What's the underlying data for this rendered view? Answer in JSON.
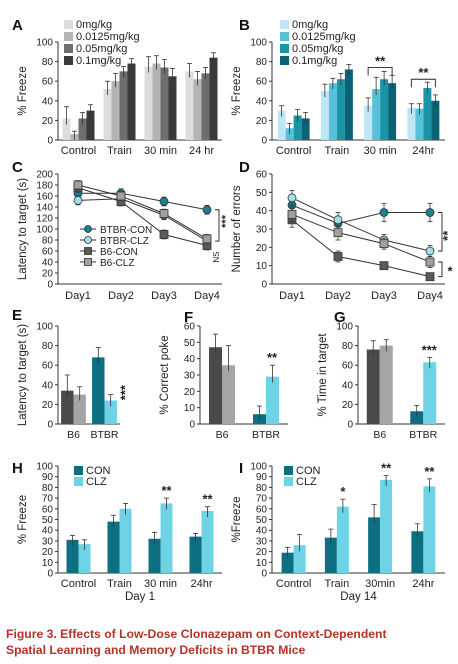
{
  "caption": {
    "line1": "Figure 3.  Effects of Low-Dose Clonazepam on Context-Dependent",
    "line2": "Spatial Learning and Memory Deficits in BTBR Mice"
  },
  "chart_data": [
    {
      "panel": "A",
      "type": "bar",
      "categories": [
        "Control",
        "Train",
        "30 min",
        "24 hr"
      ],
      "ylabel": "% Freeze",
      "ylim": [
        0,
        100
      ],
      "yticks": [
        0,
        20,
        40,
        60,
        80,
        100
      ],
      "series": [
        {
          "name": "0mg/kg",
          "color": "#dcdcdc",
          "values": [
            22,
            52,
            75,
            70
          ],
          "errors": [
            12,
            8,
            10,
            8
          ]
        },
        {
          "name": "0.0125mg/kg",
          "color": "#b4b4b4",
          "values": [
            6,
            60,
            78,
            62
          ],
          "errors": [
            3,
            8,
            8,
            8
          ]
        },
        {
          "name": "0.05mg/kg",
          "color": "#6e6e6e",
          "values": [
            22,
            70,
            74,
            68
          ],
          "errors": [
            6,
            5,
            8,
            6
          ]
        },
        {
          "name": "0.1mg/kg",
          "color": "#3a3a3a",
          "values": [
            30,
            78,
            65,
            84
          ],
          "errors": [
            6,
            5,
            8,
            5
          ]
        }
      ],
      "annotations": []
    },
    {
      "panel": "B",
      "type": "bar",
      "categories": [
        "Control",
        "Train",
        "30 min",
        "24hr"
      ],
      "ylabel": "% Freeze",
      "ylim": [
        0,
        100
      ],
      "yticks": [
        0,
        20,
        40,
        60,
        80,
        100
      ],
      "series": [
        {
          "name": "0mg/kg",
          "color": "#bfe6f4",
          "values": [
            30,
            50,
            35,
            33
          ],
          "errors": [
            5,
            7,
            8,
            4
          ]
        },
        {
          "name": "0.0125mg/kg",
          "color": "#57c1d8",
          "values": [
            12,
            58,
            52,
            32
          ],
          "errors": [
            5,
            5,
            12,
            5
          ]
        },
        {
          "name": "0.05mg/kg",
          "color": "#1a95a6",
          "values": [
            25,
            62,
            62,
            53
          ],
          "errors": [
            6,
            6,
            8,
            6
          ]
        },
        {
          "name": "0.1mg/kg",
          "color": "#0c6275",
          "values": [
            22,
            72,
            58,
            40
          ],
          "errors": [
            6,
            5,
            8,
            6
          ]
        }
      ],
      "annotations": [
        "**",
        "**"
      ]
    },
    {
      "panel": "C",
      "type": "line",
      "categories": [
        "Day1",
        "Day2",
        "Day3",
        "Day4"
      ],
      "ylabel": "Latency to target (s)",
      "ylim": [
        0,
        200
      ],
      "yticks": [
        0,
        20,
        40,
        60,
        80,
        100,
        120,
        140,
        160,
        180,
        200
      ],
      "series": [
        {
          "name": "BTBR-CON",
          "marker": "circle",
          "fill": "#1a7f8e",
          "values": [
            165,
            165,
            150,
            135
          ],
          "errors": [
            8,
            8,
            8,
            8
          ]
        },
        {
          "name": "BTBR-CLZ",
          "marker": "circle",
          "fill": "#9fe0ea",
          "values": [
            152,
            155,
            125,
            78
          ],
          "errors": [
            8,
            8,
            8,
            8
          ]
        },
        {
          "name": "B6-CON",
          "marker": "square",
          "fill": "#5a5a5a",
          "values": [
            175,
            150,
            90,
            70
          ],
          "errors": [
            8,
            8,
            8,
            8
          ]
        },
        {
          "name": "B6-CLZ",
          "marker": "square",
          "fill": "#a0a0a0",
          "values": [
            180,
            160,
            128,
            82
          ],
          "errors": [
            8,
            8,
            8,
            8
          ]
        }
      ],
      "annotations": [
        "***",
        "NS"
      ]
    },
    {
      "panel": "D",
      "type": "line",
      "categories": [
        "Day1",
        "Day2",
        "Day3",
        "Day4"
      ],
      "ylabel": "Number of errors",
      "ylim": [
        0,
        60
      ],
      "yticks": [
        0,
        10,
        20,
        30,
        40,
        50,
        60
      ],
      "series": [
        {
          "name": "BTBR-CON",
          "marker": "circle",
          "fill": "#1a7f8e",
          "values": [
            43,
            33,
            39,
            39
          ],
          "errors": [
            4,
            4,
            5,
            5
          ]
        },
        {
          "name": "BTBR-CLZ",
          "marker": "circle",
          "fill": "#9fe0ea",
          "values": [
            47,
            35,
            24,
            18
          ],
          "errors": [
            4,
            4,
            3,
            3
          ]
        },
        {
          "name": "B6-CON",
          "marker": "square",
          "fill": "#5a5a5a",
          "values": [
            35,
            15,
            10,
            4
          ],
          "errors": [
            4,
            3,
            2,
            2
          ]
        },
        {
          "name": "B6-CLZ",
          "marker": "square",
          "fill": "#a0a0a0",
          "values": [
            38,
            28,
            22,
            12
          ],
          "errors": [
            4,
            4,
            3,
            3
          ]
        }
      ],
      "annotations": [
        "**",
        "*"
      ]
    },
    {
      "panel": "E",
      "type": "bar",
      "categories": [
        "B6",
        "BTBR"
      ],
      "ylabel": "Latency to target (s)",
      "ylim": [
        0,
        100
      ],
      "yticks": [
        0,
        20,
        40,
        60,
        80,
        100
      ],
      "series": [
        {
          "name": "CON",
          "color": "#4a4a4a|#0e6f80",
          "values": [
            34,
            68
          ],
          "errors": [
            16,
            10
          ]
        },
        {
          "name": "CLZ",
          "color": "#a5a5a5|#6fd3e6",
          "values": [
            30,
            24
          ],
          "errors": [
            8,
            6
          ]
        }
      ],
      "annotations": [
        "***"
      ]
    },
    {
      "panel": "F",
      "type": "bar",
      "categories": [
        "B6",
        "BTBR"
      ],
      "ylabel": "% Correct poke",
      "ylim": [
        0,
        60
      ],
      "yticks": [
        0,
        10,
        20,
        30,
        40,
        50,
        60
      ],
      "series": [
        {
          "name": "CON",
          "color": "#4a4a4a|#0e6f80",
          "values": [
            47,
            6
          ],
          "errors": [
            8,
            5
          ]
        },
        {
          "name": "CLZ",
          "color": "#a5a5a5|#6fd3e6",
          "values": [
            36,
            29
          ],
          "errors": [
            12,
            7
          ]
        }
      ],
      "annotations": [
        "**"
      ]
    },
    {
      "panel": "G",
      "type": "bar",
      "categories": [
        "B6",
        "BTBR"
      ],
      "ylabel": "% Time in target",
      "ylim": [
        0,
        100
      ],
      "yticks": [
        0,
        20,
        40,
        60,
        80,
        100
      ],
      "series": [
        {
          "name": "CON",
          "color": "#4a4a4a|#0e6f80",
          "values": [
            76,
            13
          ],
          "errors": [
            9,
            6
          ]
        },
        {
          "name": "CLZ",
          "color": "#a5a5a5|#6fd3e6",
          "values": [
            80,
            63
          ],
          "errors": [
            6,
            5
          ]
        }
      ],
      "annotations": [
        "***"
      ]
    },
    {
      "panel": "H",
      "type": "bar",
      "categories": [
        "Control",
        "Train",
        "30 min",
        "24hr"
      ],
      "ylabel": "% Freeze",
      "xlabel": "Day 1",
      "ylim": [
        0,
        100
      ],
      "yticks": [
        0,
        10,
        20,
        30,
        40,
        50,
        60,
        70,
        80,
        90,
        100
      ],
      "series": [
        {
          "name": "CON",
          "color": "#0e6f80",
          "values": [
            31,
            48,
            32,
            34
          ],
          "errors": [
            4,
            6,
            6,
            3
          ]
        },
        {
          "name": "CLZ",
          "color": "#6fd3e6",
          "values": [
            27,
            60,
            65,
            58
          ],
          "errors": [
            4,
            5,
            5,
            4
          ]
        }
      ],
      "annotations": [
        "**",
        "**"
      ]
    },
    {
      "panel": "I",
      "type": "bar",
      "categories": [
        "Control",
        "Train",
        "30min",
        "24hr"
      ],
      "ylabel": "%Freeze",
      "xlabel": "Day 14",
      "ylim": [
        0,
        100
      ],
      "yticks": [
        0,
        10,
        20,
        30,
        40,
        50,
        60,
        70,
        80,
        90,
        100
      ],
      "series": [
        {
          "name": "CON",
          "color": "#0e6f80",
          "values": [
            19,
            33,
            52,
            39
          ],
          "errors": [
            5,
            8,
            12,
            7
          ]
        },
        {
          "name": "CLZ",
          "color": "#6fd3e6",
          "values": [
            26,
            62,
            87,
            81
          ],
          "errors": [
            10,
            7,
            4,
            7
          ]
        }
      ],
      "annotations": [
        "*",
        "**",
        "**"
      ]
    }
  ]
}
